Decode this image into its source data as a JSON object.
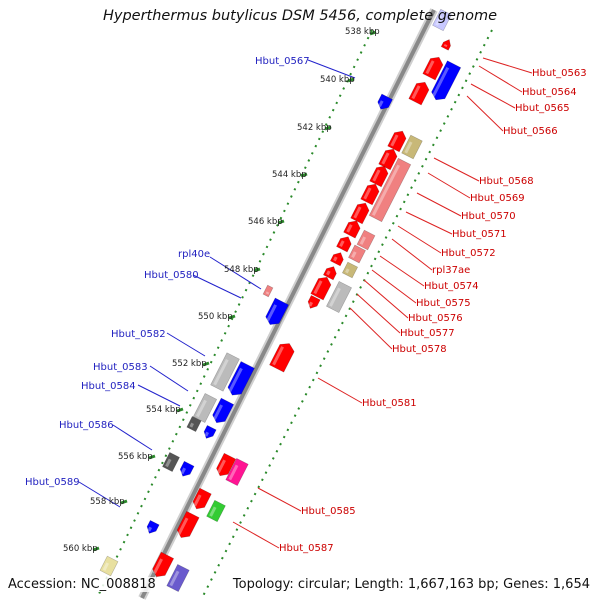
{
  "title": "Hyperthermus butylicus DSM 5456, complete genome",
  "footer": {
    "accession": "Accession: NC_008818",
    "topology": "Topology: circular; Length: 1,667,163 bp; Genes: 1,654"
  },
  "colors": {
    "forward": "#ff0000",
    "reverse": "#0000ff",
    "grey": "#bbbbbb",
    "dark": "#555555",
    "tan": "#c8b878",
    "pink": "#f08080",
    "magenta": "#ff1493",
    "green": "#33cc33",
    "purple": "#6a5acd",
    "tick": "#2b8a2b",
    "backbone": "#888888"
  },
  "kbp_labels": [
    "538 kbp",
    "540 kbp",
    "542 kbp",
    "544 kbp",
    "546 kbp",
    "548 kbp",
    "550 kbp",
    "552 kbp",
    "554 kbp",
    "556 kbp",
    "558 kbp",
    "560 kbp"
  ],
  "left_labels": [
    "Hbut_0567",
    "rpl40e",
    "Hbut_0580",
    "Hbut_0582",
    "Hbut_0583",
    "Hbut_0584",
    "Hbut_0586",
    "Hbut_0589"
  ],
  "right_labels": [
    "Hbut_0563",
    "Hbut_0564",
    "Hbut_0565",
    "Hbut_0566",
    "Hbut_0568",
    "Hbut_0569",
    "Hbut_0570",
    "Hbut_0571",
    "Hbut_0572",
    "rpl37ae",
    "Hbut_0574",
    "Hbut_0575",
    "Hbut_0576",
    "Hbut_0577",
    "Hbut_0578",
    "Hbut_0581",
    "Hbut_0585",
    "Hbut_0587"
  ]
}
